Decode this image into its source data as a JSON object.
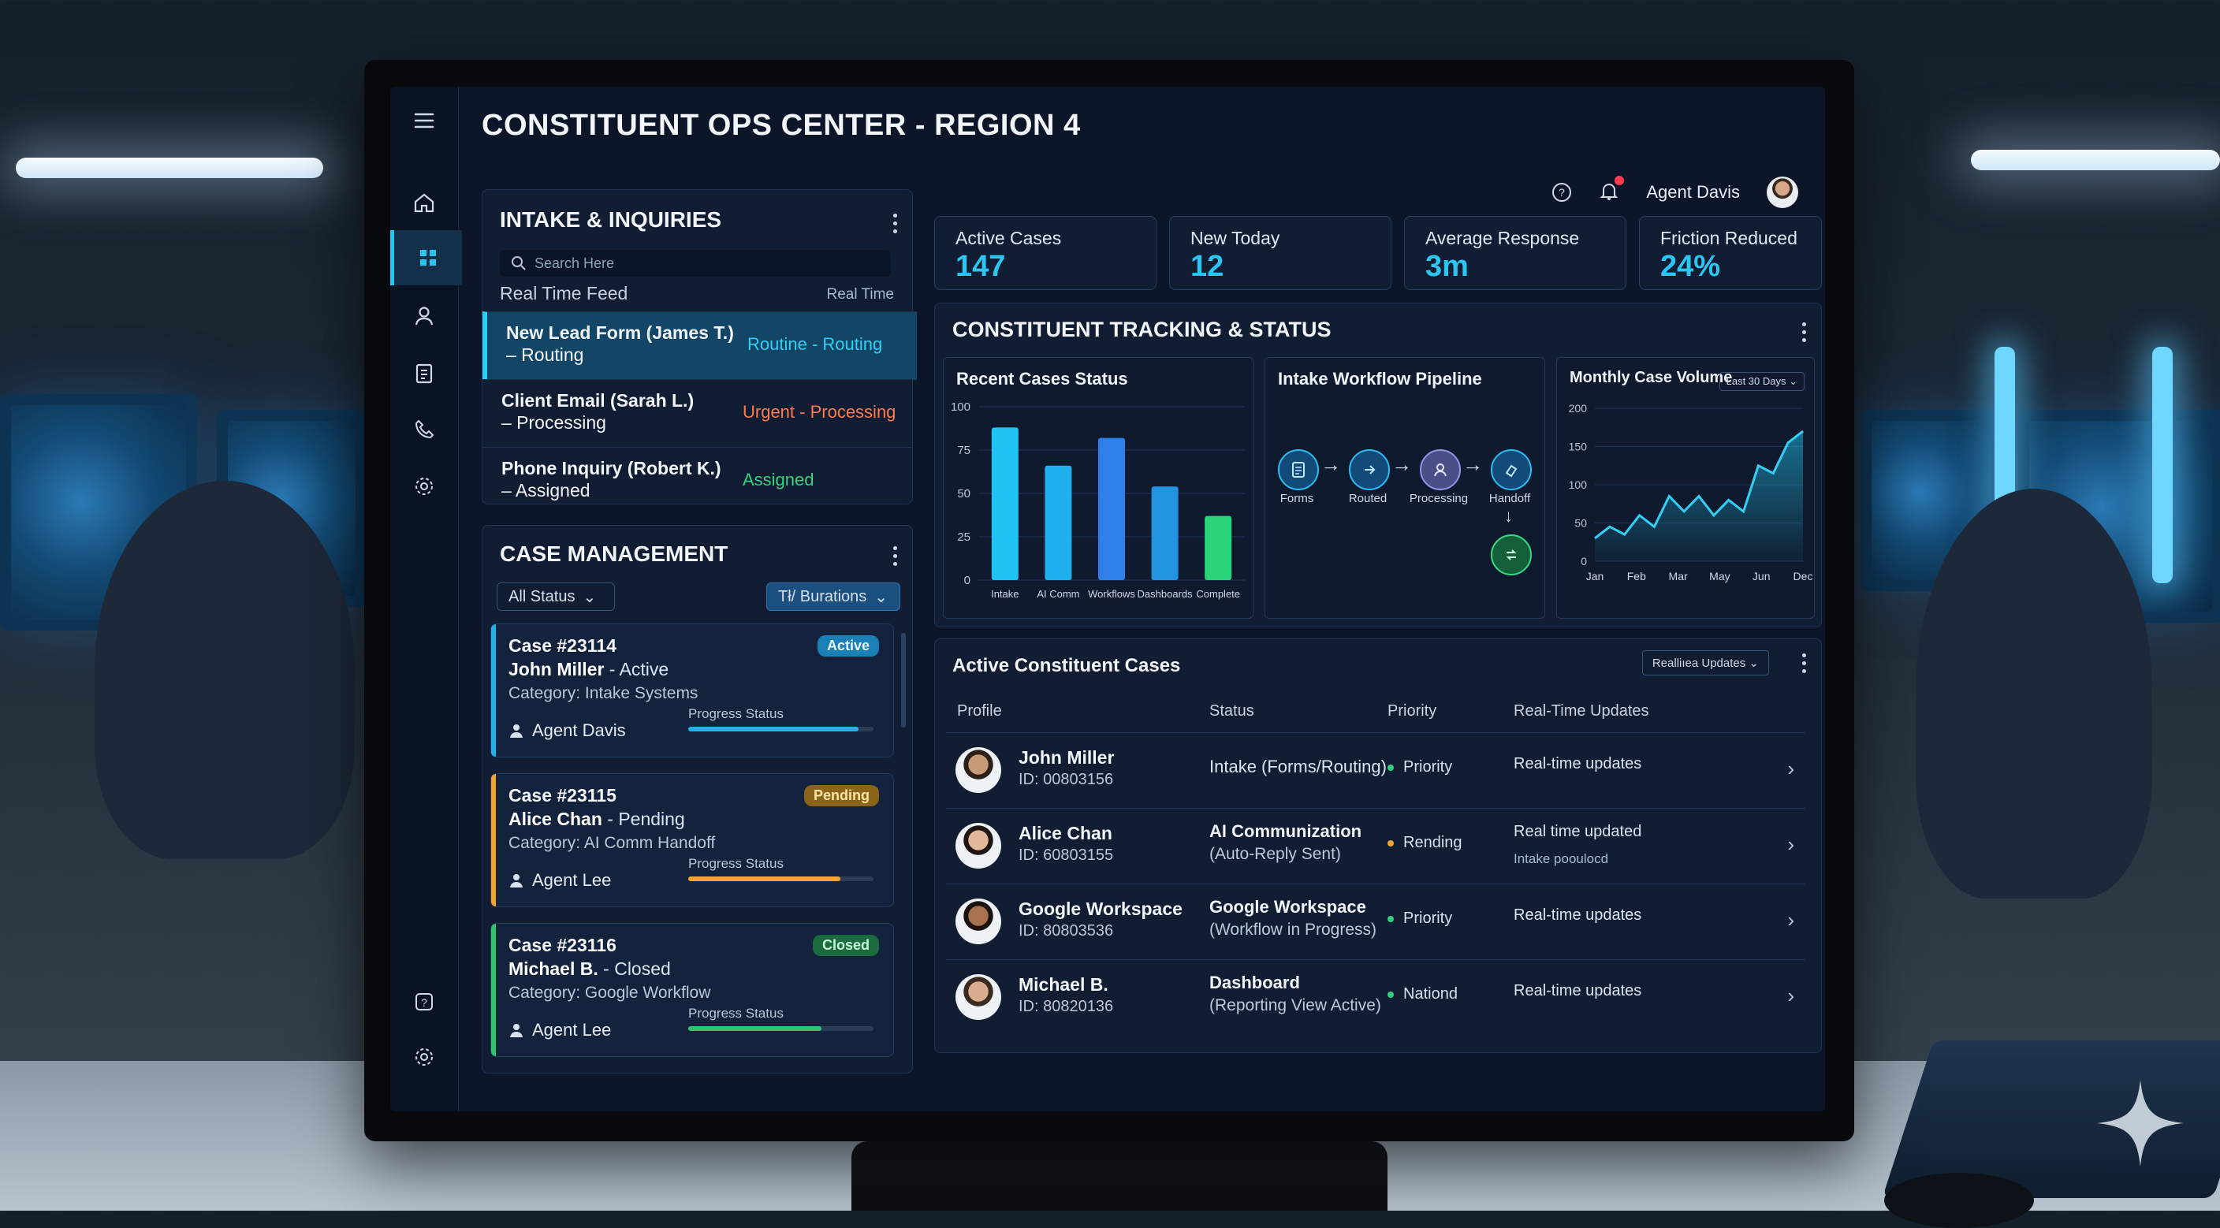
{
  "app": {
    "title": "CONSTITUENT OPS CENTER - REGION 4"
  },
  "header": {
    "agent_name": "Agent Davis"
  },
  "intake": {
    "title": "INTAKE & INQUIRIES",
    "search_placeholder": "Search Here",
    "feed_label": "Real Time Feed",
    "feed_right": "Real Time",
    "items": [
      {
        "line1": "New Lead Form (James T.)",
        "line2": "– Routing",
        "status": "Routine - Routing",
        "color": "#2bd0f4"
      },
      {
        "line1": "Client Email (Sarah L.)",
        "line2": "– Processing",
        "status": "Urgent - Processing",
        "color": "#ff7a4a"
      },
      {
        "line1": "Phone Inquiry (Robert K.)",
        "line2": "– Assigned",
        "status": "Assigned",
        "color": "#36d27f"
      }
    ]
  },
  "cases": {
    "title": "CASE MANAGEMENT",
    "filter_status": "All Status",
    "filter_duration": "Tł/ Burations",
    "progress_label": "Progress Status",
    "items": [
      {
        "id": "Case #23114",
        "name": "John Miller",
        "state": " - Active",
        "category": "Category: Intake Systems",
        "agent": "Agent Davis",
        "badge": "Active",
        "badge_bg": "#1b7fb8",
        "badge_fg": "#e8f6ff",
        "accent": "#1fb3ea",
        "progress": 0.92
      },
      {
        "id": "Case #23115",
        "name": "Alice Chan",
        "state": " - Pending",
        "category": "Category: AI Comm Handoff",
        "agent": "Agent Lee",
        "badge": "Pending",
        "badge_bg": "#8a6418",
        "badge_fg": "#ffe3a6",
        "accent": "#f2a431",
        "progress": 0.82
      },
      {
        "id": "Case #23116",
        "name": "Michael B.",
        "state": " - Closed",
        "category": "Category: Google Workflow",
        "agent": "Agent Lee",
        "badge": "Closed",
        "badge_bg": "#1a6b3e",
        "badge_fg": "#c8f7da",
        "accent": "#2fc56c",
        "progress": 0.72
      }
    ]
  },
  "kpis": [
    {
      "label": "Active Cases",
      "value": "147"
    },
    {
      "label": "New Today",
      "value": "12"
    },
    {
      "label": "Average Response",
      "value": "3m"
    },
    {
      "label": "Friction Reduced",
      "value": "24%"
    }
  ],
  "tracking": {
    "title": "CONSTITUENT TRACKING & STATUS",
    "recent_title": "Recent Cases Status",
    "pipeline_title": "Intake Workflow Pipeline",
    "pipeline_steps": [
      "Forms",
      "Routed",
      "Processing",
      "Handoff"
    ],
    "volume_title": "Monthly Case Volume",
    "volume_range": "Last 30 Days"
  },
  "chart_data": [
    {
      "type": "bar",
      "title": "Recent Cases Status",
      "categories": [
        "Intake",
        "AI Comm",
        "Workflows",
        "Dashboards",
        "Complete"
      ],
      "values": [
        88,
        66,
        82,
        54,
        37
      ],
      "colors": [
        "#1fc4f2",
        "#1fb0ee",
        "#2f7fe8",
        "#2294df",
        "#2bd37a"
      ],
      "ylim": [
        0,
        100
      ],
      "yticks": [
        0,
        25,
        50,
        75,
        100
      ],
      "grid": true
    },
    {
      "type": "area",
      "title": "Monthly Case Volume",
      "x_ticks": [
        "Jan",
        "Feb",
        "Mar",
        "May",
        "Jun",
        "Dec"
      ],
      "x": [
        0,
        1,
        2,
        3,
        4,
        5,
        6,
        7,
        8,
        9,
        10,
        11,
        12,
        13,
        14
      ],
      "y": [
        30,
        45,
        35,
        60,
        45,
        85,
        65,
        85,
        60,
        80,
        65,
        125,
        115,
        155,
        170
      ],
      "ylim": [
        0,
        200
      ],
      "yticks": [
        0,
        50,
        100,
        150,
        200
      ],
      "grid": true
    }
  ],
  "table": {
    "title": "Active Constituent Cases",
    "filter": "Realliıea Updates",
    "headers": [
      "Profile",
      "Status",
      "Priority",
      "Real-Time Updates"
    ],
    "rows": [
      {
        "name": "John Miller",
        "id": "ID: 00803156",
        "status1": "Intake (Forms/Routing)",
        "status2": "",
        "bold": false,
        "priority": "Priority",
        "dot": "#2fd07a",
        "update1": "Real-time updates",
        "update2": ""
      },
      {
        "name": "Alice Chan",
        "id": "ID: 60803155",
        "status1": "AI Communization",
        "status2": "(Auto-Reply Sent)",
        "bold": true,
        "priority": "Rending",
        "dot": "#f2a431",
        "update1": "Real time updated",
        "update2": "Intake pooulocd"
      },
      {
        "name": "Google Workspace",
        "id": "ID: 80803536",
        "status1": "Google Workspace",
        "status2": "(Workflow in Progress)",
        "bold": true,
        "priority": "Priority",
        "dot": "#2fd07a",
        "update1": "Real-time updates",
        "update2": ""
      },
      {
        "name": "Michael B.",
        "id": "ID: 80820136",
        "status1": "Dashboard",
        "status2": "(Reporting View Active)",
        "bold": true,
        "priority": "Nationd",
        "dot": "#2fd07a",
        "update1": "Real-time updates",
        "update2": ""
      }
    ]
  }
}
